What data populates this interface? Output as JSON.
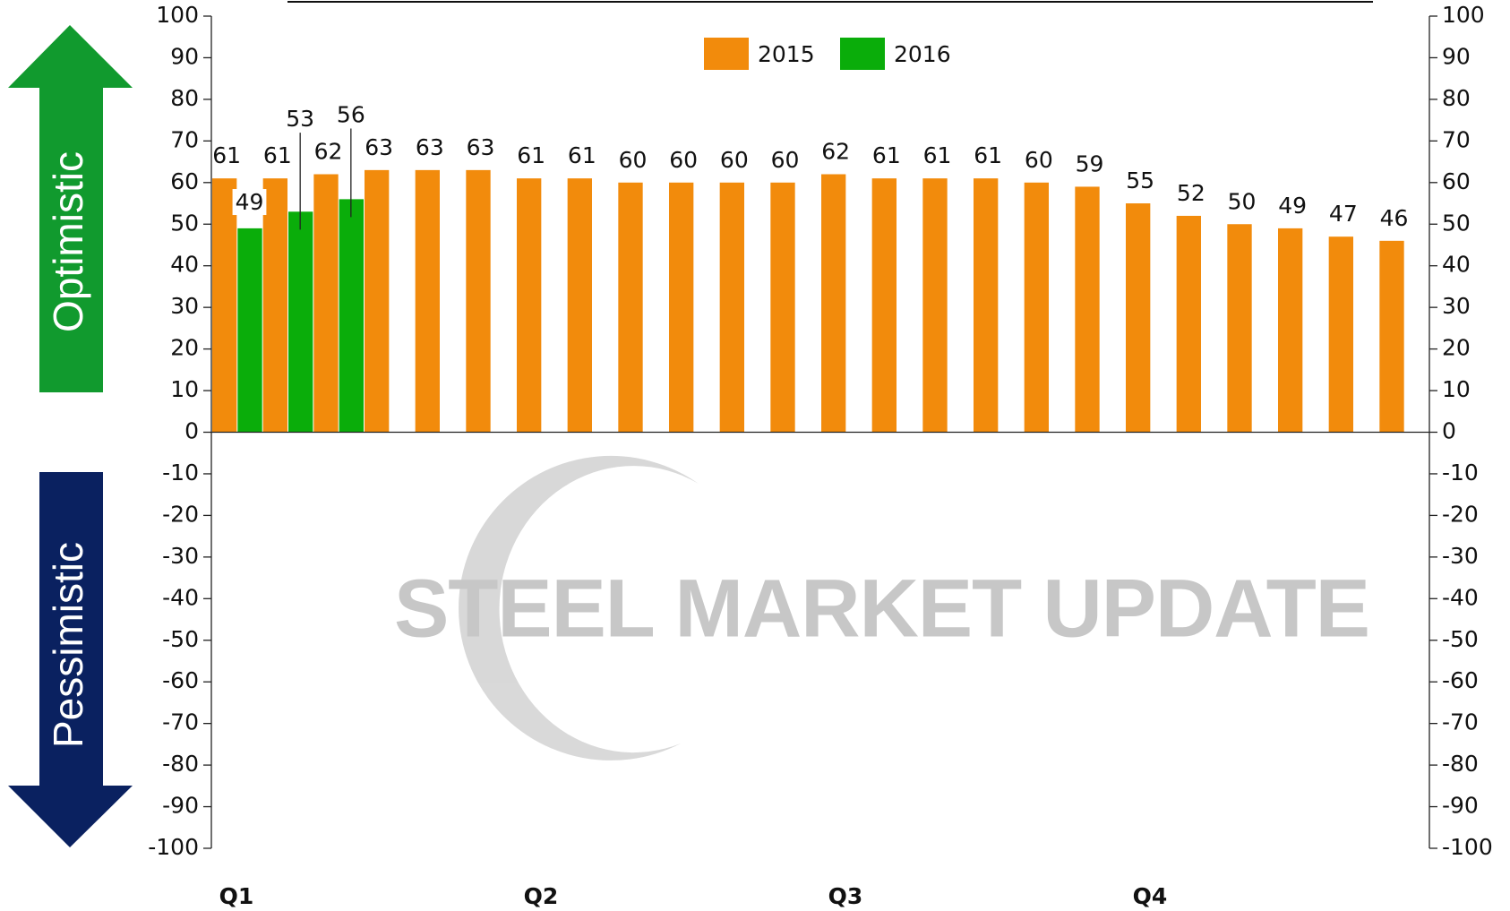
{
  "chart_data": {
    "type": "bar",
    "side_labels": {
      "up": "Optimistic",
      "down": "Pessimistic"
    },
    "watermark": "STEEL MARKET UPDATE",
    "categories": [
      "Q1",
      null,
      null,
      null,
      null,
      null,
      "Q2",
      null,
      null,
      null,
      null,
      null,
      "Q3",
      null,
      null,
      null,
      null,
      null,
      "Q4",
      null,
      null,
      null,
      null,
      null
    ],
    "series": [
      {
        "name": "2015",
        "color": "#f28b0c",
        "values": [
          61,
          61,
          62,
          63,
          63,
          63,
          61,
          61,
          60,
          60,
          60,
          60,
          62,
          61,
          61,
          61,
          60,
          59,
          55,
          52,
          50,
          49,
          47,
          46
        ]
      },
      {
        "name": "2016",
        "color": "#0aad0a",
        "values": [
          49,
          53,
          56,
          null,
          null,
          null,
          null,
          null,
          null,
          null,
          null,
          null,
          null,
          null,
          null,
          null,
          null,
          null,
          null,
          null,
          null,
          null,
          null,
          null
        ]
      }
    ],
    "ylim": [
      -100,
      100
    ],
    "yticks": [
      -100,
      -90,
      -80,
      -70,
      -60,
      -50,
      -40,
      -30,
      -20,
      -10,
      0,
      10,
      20,
      30,
      40,
      50,
      60,
      70,
      80,
      90,
      100
    ],
    "y2lim": [
      -100,
      100
    ],
    "y2ticks": [
      -100,
      -90,
      -80,
      -70,
      -60,
      -50,
      -40,
      -30,
      -20,
      -10,
      0,
      10,
      20,
      30,
      40,
      50,
      60,
      70,
      80,
      90,
      100
    ],
    "legend": "top"
  }
}
